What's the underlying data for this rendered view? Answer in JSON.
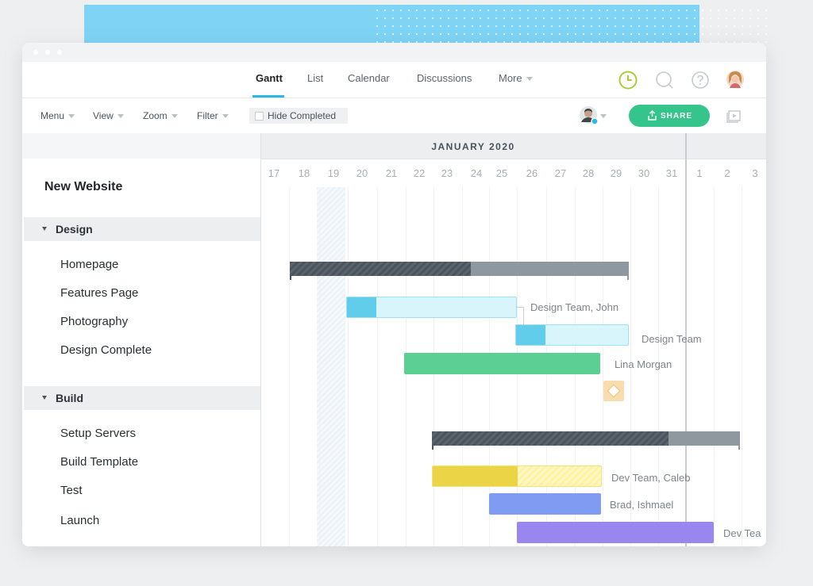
{
  "nav": {
    "tabs": [
      {
        "label": "Gantt",
        "active": true
      },
      {
        "label": "List"
      },
      {
        "label": "Calendar"
      },
      {
        "label": "Discussions"
      },
      {
        "label": "More"
      }
    ],
    "icons": [
      "clock-icon",
      "search-icon",
      "help-icon",
      "user-avatar"
    ]
  },
  "toolbar": {
    "menu": "Menu",
    "view": "View",
    "zoom": "Zoom",
    "filter": "Filter",
    "hide_completed": "Hide Completed",
    "share": "SHARE"
  },
  "project": {
    "title": "New Website",
    "groups": [
      {
        "name": "Design",
        "tasks": [
          "Homepage",
          "Features Page",
          "Photography",
          "Design Complete"
        ]
      },
      {
        "name": "Build",
        "tasks": [
          "Setup Servers",
          "Build Template",
          "Test",
          "Launch"
        ]
      }
    ]
  },
  "timeline": {
    "month": "JANUARY 2020",
    "days": [
      "17",
      "18",
      "19",
      "20",
      "21",
      "22",
      "23",
      "24",
      "25",
      "26",
      "27",
      "28",
      "29",
      "30",
      "31",
      "1",
      "2",
      "3"
    ]
  },
  "bars": {
    "homepage_assignee": "Design Team, John",
    "features_assignee": "Design Team",
    "photography_assignee": "Lina Morgan",
    "setup_servers_assignee": "Dev Team, Caleb",
    "build_template_assignee": "Brad, Ishmael",
    "test_assignee": "Dev Tea"
  },
  "colors": {
    "accent": "#29b6e8",
    "share": "#35c48b",
    "design_bar": "#62cdeb",
    "photography_bar": "#5ccf95",
    "setup_bar": "#ecd447",
    "build_template_bar": "#7f9cf2",
    "test_bar": "#9a86ef"
  }
}
